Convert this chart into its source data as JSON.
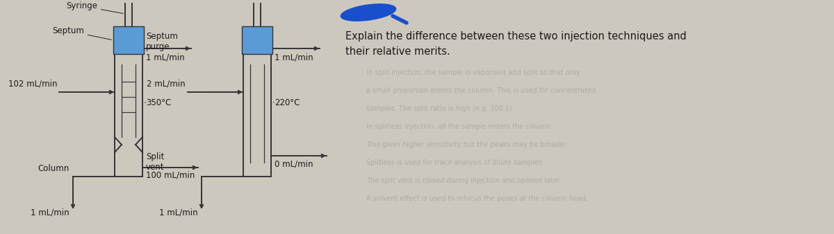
{
  "bg_color": "#cdc8be",
  "text_color": "#1a1a1a",
  "blue_color": "#5b9bd5",
  "line_color": "#333333",
  "question_text_line1": "Explain the difference between these two injection techniques and",
  "question_text_line2": "their relative merits.",
  "faded_lines": [
    "In split injection, the sample is vaporised and split so that only",
    "a small proportion enters the column. This is used for concentrated",
    "samples. The split ratio is high (e.g. 100:1).",
    "In splitless injection, all the sample enters the column.",
    "This gives higher sensitivity but the peaks may be broader.",
    "Splitless is used for trace analysis of dilute samples.",
    "The split vent is closed during injection and opened later.",
    "A solvent effect is used to refocus the peaks at the column head."
  ]
}
